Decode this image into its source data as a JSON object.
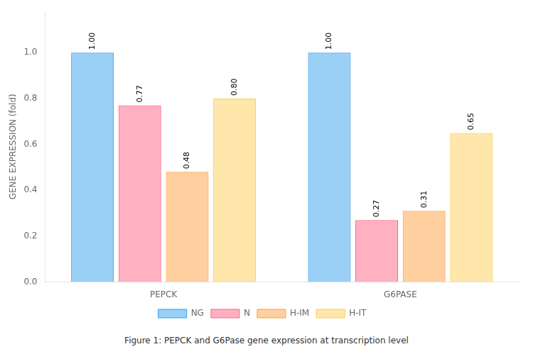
{
  "chart_data": {
    "type": "bar",
    "categories": [
      "PEPCK",
      "G6PASE"
    ],
    "series": [
      {
        "name": "NG",
        "values": [
          1.0,
          1.0
        ],
        "value_labels": [
          "1.00",
          "1.00"
        ]
      },
      {
        "name": "N",
        "values": [
          0.77,
          0.27
        ],
        "value_labels": [
          "0.77",
          "0.27"
        ]
      },
      {
        "name": "H-IM",
        "values": [
          0.48,
          0.31
        ],
        "value_labels": [
          "0.48",
          "0.31"
        ]
      },
      {
        "name": "H-IT",
        "values": [
          0.8,
          0.65
        ],
        "value_labels": [
          "0.80",
          "0.65"
        ]
      }
    ],
    "ylabel": "GENE EXPRESSION (fold)",
    "ylim": [
      0,
      1.18
    ],
    "yticks": [
      {
        "value": 0,
        "label": "0.0"
      },
      0.2,
      0.4,
      0.6,
      0.8,
      {
        "value": 1,
        "label": "1.0"
      }
    ],
    "grid": false,
    "legend": "bottom",
    "data_labels": true,
    "annotations": [
      "Figure 1: PEPCK and G6Pase gene expression at transcription level"
    ]
  }
}
